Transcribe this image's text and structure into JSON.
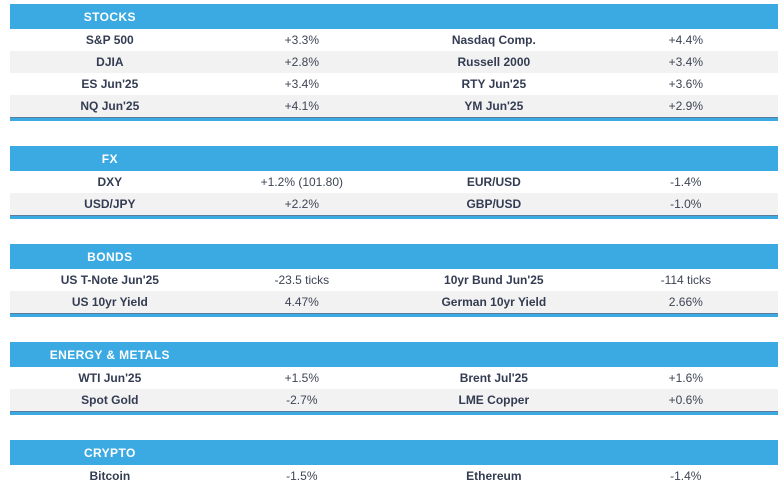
{
  "colors": {
    "header_bg": "#3BA9E2",
    "header_text": "#FFFFFF",
    "underline": "#3BA9E2",
    "row_bg": "#FFFFFF",
    "row_alt_bg": "#F2F2F2",
    "name_text": "#333C52",
    "value_text": "#3D4454"
  },
  "sections": [
    {
      "title": "STOCKS",
      "rows": [
        {
          "cells": [
            {
              "label": "S&P 500",
              "value": "+3.3%"
            },
            {
              "label": "Nasdaq Comp.",
              "value": "+4.4%"
            }
          ]
        },
        {
          "cells": [
            {
              "label": "DJIA",
              "value": "+2.8%"
            },
            {
              "label": "Russell 2000",
              "value": "+3.4%"
            }
          ]
        },
        {
          "cells": [
            {
              "label": "ES Jun'25",
              "value": "+3.4%"
            },
            {
              "label": "RTY Jun'25",
              "value": "+3.6%"
            }
          ]
        },
        {
          "cells": [
            {
              "label": "NQ Jun'25",
              "value": "+4.1%"
            },
            {
              "label": "YM Jun'25",
              "value": "+2.9%"
            }
          ]
        }
      ]
    },
    {
      "title": "FX",
      "rows": [
        {
          "cells": [
            {
              "label": "DXY",
              "value": "+1.2% (101.80)"
            },
            {
              "label": "EUR/USD",
              "value": "-1.4%"
            }
          ]
        },
        {
          "cells": [
            {
              "label": "USD/JPY",
              "value": "+2.2%"
            },
            {
              "label": "GBP/USD",
              "value": "-1.0%"
            }
          ]
        }
      ]
    },
    {
      "title": "BONDS",
      "rows": [
        {
          "cells": [
            {
              "label": "US T-Note Jun'25",
              "value": "-23.5 ticks"
            },
            {
              "label": "10yr Bund Jun'25",
              "value": "-114 ticks"
            }
          ]
        },
        {
          "cells": [
            {
              "label": "US 10yr Yield",
              "value": "4.47%"
            },
            {
              "label": "German 10yr Yield",
              "value": "2.66%"
            }
          ]
        }
      ]
    },
    {
      "title": "ENERGY & METALS",
      "rows": [
        {
          "cells": [
            {
              "label": "WTI Jun'25",
              "value": "+1.5%"
            },
            {
              "label": "Brent Jul'25",
              "value": "+1.6%"
            }
          ]
        },
        {
          "cells": [
            {
              "label": "Spot Gold",
              "value": "-2.7%"
            },
            {
              "label": "LME Copper",
              "value": "+0.6%"
            }
          ]
        }
      ]
    },
    {
      "title": "CRYPTO",
      "rows": [
        {
          "cells": [
            {
              "label": "Bitcoin",
              "value": "-1.5%"
            },
            {
              "label": "Ethereum",
              "value": "-1.4%"
            }
          ]
        }
      ]
    }
  ]
}
